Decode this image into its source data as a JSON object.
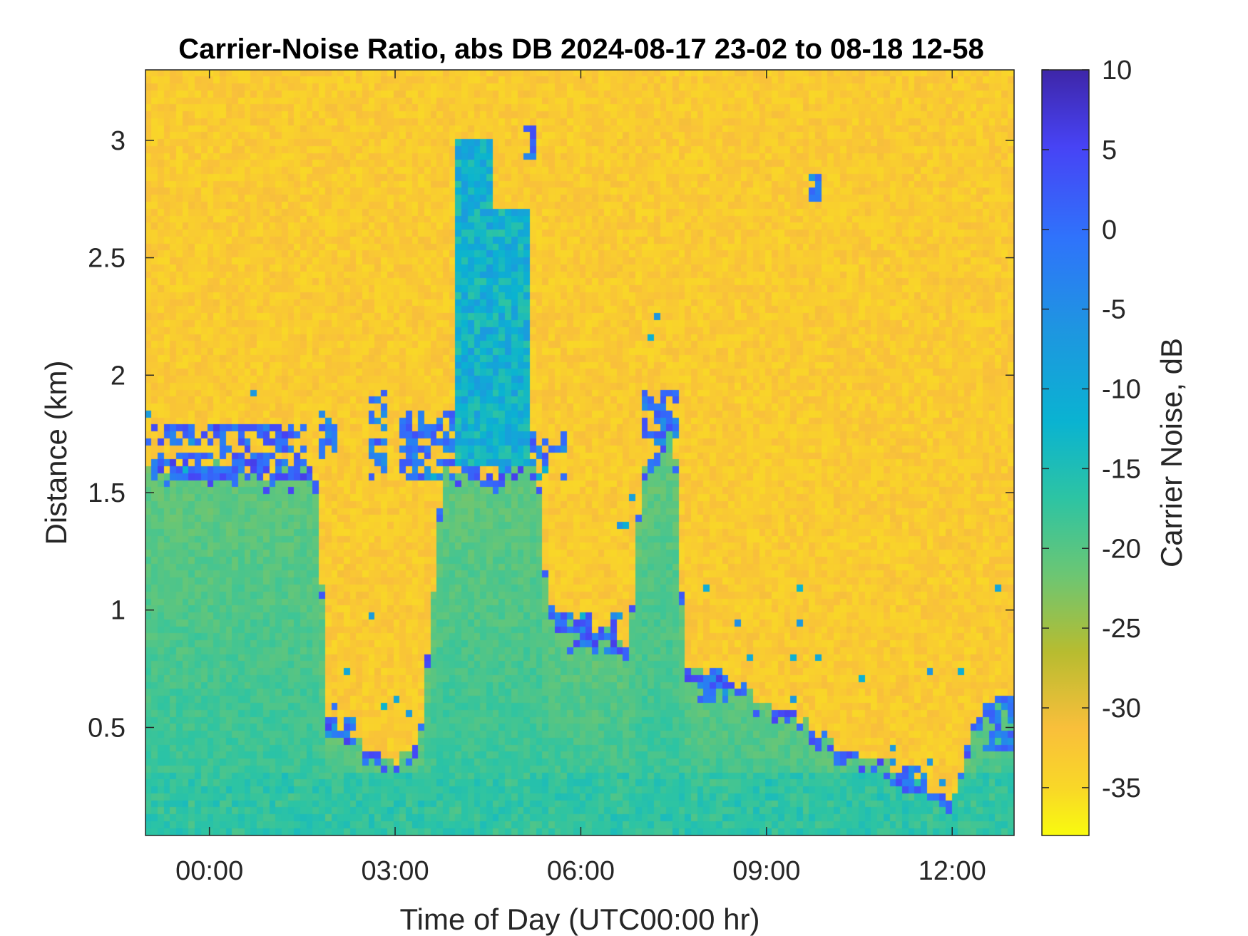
{
  "chart_data": {
    "type": "heatmap",
    "title": "Carrier-Noise Ratio, abs DB 2024-08-17 23-02 to 08-18 12-58",
    "xlabel": "Time of Day (UTC00:00 hr)",
    "ylabel": "Distance (km)",
    "colorbar_label": "Carrier Noise, dB",
    "colormap": "parula-reversed",
    "x_ticks": [
      "00:00",
      "03:00",
      "06:00",
      "09:00",
      "12:00"
    ],
    "x_tick_hours": [
      0,
      3,
      6,
      9,
      12
    ],
    "xlim_hours": [
      -1.033,
      13.0
    ],
    "xlim_labels": [
      "23:02",
      "12:58"
    ],
    "y_ticks": [
      "0.5",
      "1",
      "1.5",
      "2",
      "2.5",
      "3"
    ],
    "y_tick_values": [
      0.5,
      1,
      1.5,
      2,
      2.5,
      3
    ],
    "ylim_km": [
      0.04,
      3.3
    ],
    "colorbar_ticks": [
      "10",
      "5",
      "0",
      "-5",
      "-10",
      "-15",
      "-20",
      "-25",
      "-30",
      "-35"
    ],
    "colorbar_tick_values": [
      10,
      5,
      0,
      -5,
      -10,
      -15,
      -20,
      -25,
      -30,
      -35
    ],
    "clim_db": [
      -38,
      10
    ],
    "background_db": -33,
    "layer_tops_km": [
      [
        -1.0,
        1.6
      ],
      [
        -0.5,
        1.6
      ],
      [
        0.0,
        1.6
      ],
      [
        0.5,
        1.6
      ],
      [
        1.0,
        1.6
      ],
      [
        1.5,
        1.6
      ],
      [
        1.8,
        1.58
      ],
      [
        1.85,
        0.5
      ],
      [
        2.2,
        0.5
      ],
      [
        2.5,
        0.4
      ],
      [
        2.8,
        0.4
      ],
      [
        2.9,
        0.35
      ],
      [
        3.1,
        0.4
      ],
      [
        3.4,
        0.45
      ],
      [
        3.8,
        1.6
      ],
      [
        4.5,
        1.6
      ],
      [
        5.3,
        1.6
      ],
      [
        5.5,
        1.0
      ],
      [
        5.9,
        0.95
      ],
      [
        6.3,
        0.9
      ],
      [
        6.8,
        0.85
      ],
      [
        7.0,
        1.6
      ],
      [
        7.5,
        1.8
      ],
      [
        7.7,
        0.75
      ],
      [
        8.4,
        0.7
      ],
      [
        9.0,
        0.6
      ],
      [
        9.5,
        0.55
      ],
      [
        10.0,
        0.45
      ],
      [
        10.5,
        0.4
      ],
      [
        11.0,
        0.35
      ],
      [
        11.5,
        0.25
      ],
      [
        12.0,
        0.2
      ],
      [
        12.5,
        0.6
      ],
      [
        13.0,
        0.65
      ]
    ],
    "layer_colors_db": {
      "aerosol_layer": -21,
      "near_surface": -17,
      "cloud_edge": 6
    },
    "features": [
      {
        "hours": [
          -1.0,
          1.6
        ],
        "km": [
          1.55,
          1.8
        ],
        "db": 6,
        "kind": "cloud-edge"
      },
      {
        "hours": [
          1.8,
          2.1
        ],
        "km": [
          1.65,
          1.85
        ],
        "db": 4,
        "kind": "cloud-edge"
      },
      {
        "hours": [
          1.9,
          2.4
        ],
        "km": [
          0.45,
          0.6
        ],
        "db": 3,
        "kind": "cloud-edge"
      },
      {
        "hours": [
          2.6,
          2.9
        ],
        "km": [
          1.55,
          1.95
        ],
        "db": 4,
        "kind": "cloud-edge"
      },
      {
        "hours": [
          3.1,
          4.0
        ],
        "km": [
          1.55,
          1.85
        ],
        "db": 4,
        "kind": "cloud-edge"
      },
      {
        "hours": [
          4.0,
          4.6
        ],
        "km": [
          1.6,
          3.0
        ],
        "db": -12,
        "kind": "plume"
      },
      {
        "hours": [
          4.6,
          5.2
        ],
        "km": [
          1.6,
          2.7
        ],
        "db": -12,
        "kind": "plume"
      },
      {
        "hours": [
          5.1,
          5.3
        ],
        "km": [
          2.9,
          3.05
        ],
        "db": 5,
        "kind": "cloud-edge"
      },
      {
        "hours": [
          5.2,
          5.8
        ],
        "km": [
          1.55,
          1.75
        ],
        "db": 4,
        "kind": "cloud-edge"
      },
      {
        "hours": [
          5.6,
          6.6
        ],
        "km": [
          0.8,
          1.0
        ],
        "db": 5,
        "kind": "cloud-edge"
      },
      {
        "hours": [
          7.0,
          7.6
        ],
        "km": [
          1.7,
          1.95
        ],
        "db": 4,
        "kind": "cloud-edge"
      },
      {
        "hours": [
          7.9,
          8.4
        ],
        "km": [
          0.6,
          0.75
        ],
        "db": 3,
        "kind": "cloud-edge"
      },
      {
        "hours": [
          9.7,
          9.9
        ],
        "km": [
          2.75,
          2.85
        ],
        "db": 3,
        "kind": "cloud-edge"
      },
      {
        "hours": [
          11.2,
          11.6
        ],
        "km": [
          0.25,
          0.35
        ],
        "db": 3,
        "kind": "cloud-edge"
      },
      {
        "hours": [
          12.5,
          13.0
        ],
        "km": [
          0.4,
          0.6
        ],
        "db": 4,
        "kind": "cloud-edge"
      }
    ]
  }
}
